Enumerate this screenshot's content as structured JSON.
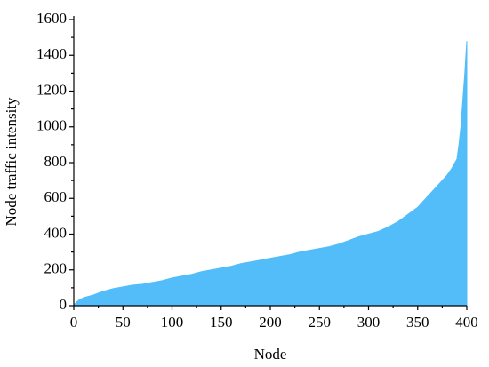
{
  "chart_data": {
    "type": "area",
    "xlabel": "Node",
    "ylabel": "Node traffic intensity",
    "x": [
      1,
      5,
      10,
      20,
      30,
      40,
      50,
      60,
      70,
      80,
      90,
      100,
      110,
      120,
      130,
      140,
      150,
      160,
      170,
      180,
      190,
      200,
      210,
      220,
      230,
      240,
      250,
      260,
      270,
      280,
      290,
      300,
      310,
      320,
      330,
      340,
      350,
      360,
      370,
      380,
      385,
      390,
      392,
      394,
      396,
      398,
      400
    ],
    "values": [
      10,
      30,
      45,
      60,
      80,
      95,
      105,
      115,
      120,
      130,
      140,
      155,
      165,
      175,
      190,
      200,
      210,
      220,
      235,
      245,
      255,
      265,
      275,
      285,
      300,
      310,
      320,
      330,
      345,
      365,
      385,
      400,
      415,
      440,
      470,
      510,
      550,
      610,
      670,
      730,
      770,
      820,
      900,
      1000,
      1150,
      1300,
      1480
    ],
    "color": "#52bdf8",
    "xlim": [
      0,
      400
    ],
    "xticks": [
      0,
      50,
      100,
      150,
      200,
      250,
      300,
      350,
      400
    ],
    "ylim": [
      0,
      1600
    ],
    "yticks": [
      0,
      200,
      400,
      600,
      800,
      1000,
      1200,
      1400,
      1600
    ]
  }
}
